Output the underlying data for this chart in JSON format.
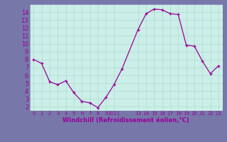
{
  "x": [
    0,
    1,
    2,
    3,
    4,
    5,
    6,
    7,
    8,
    9,
    10,
    11,
    13,
    14,
    15,
    16,
    17,
    18,
    19,
    20,
    21,
    22,
    23
  ],
  "y": [
    8.0,
    7.5,
    5.2,
    4.8,
    5.3,
    3.8,
    2.7,
    2.5,
    1.9,
    3.2,
    4.8,
    6.8,
    11.8,
    13.8,
    14.4,
    14.3,
    13.8,
    13.7,
    9.8,
    9.7,
    7.8,
    6.2,
    7.2
  ],
  "yticks": [
    2,
    3,
    4,
    5,
    6,
    7,
    8,
    9,
    10,
    11,
    12,
    13,
    14
  ],
  "ylim": [
    1.5,
    15.0
  ],
  "xlim": [
    -0.5,
    23.5
  ],
  "xlabel": "Windchill (Refroidissement éolien,°C)",
  "line_color": "#990099",
  "marker": "+",
  "bg_color": "#cceee8",
  "grid_color": "#aaddcc",
  "tick_label_color": "#990099",
  "xlabel_color": "#990099",
  "fig_bg_color": "#7777aa"
}
